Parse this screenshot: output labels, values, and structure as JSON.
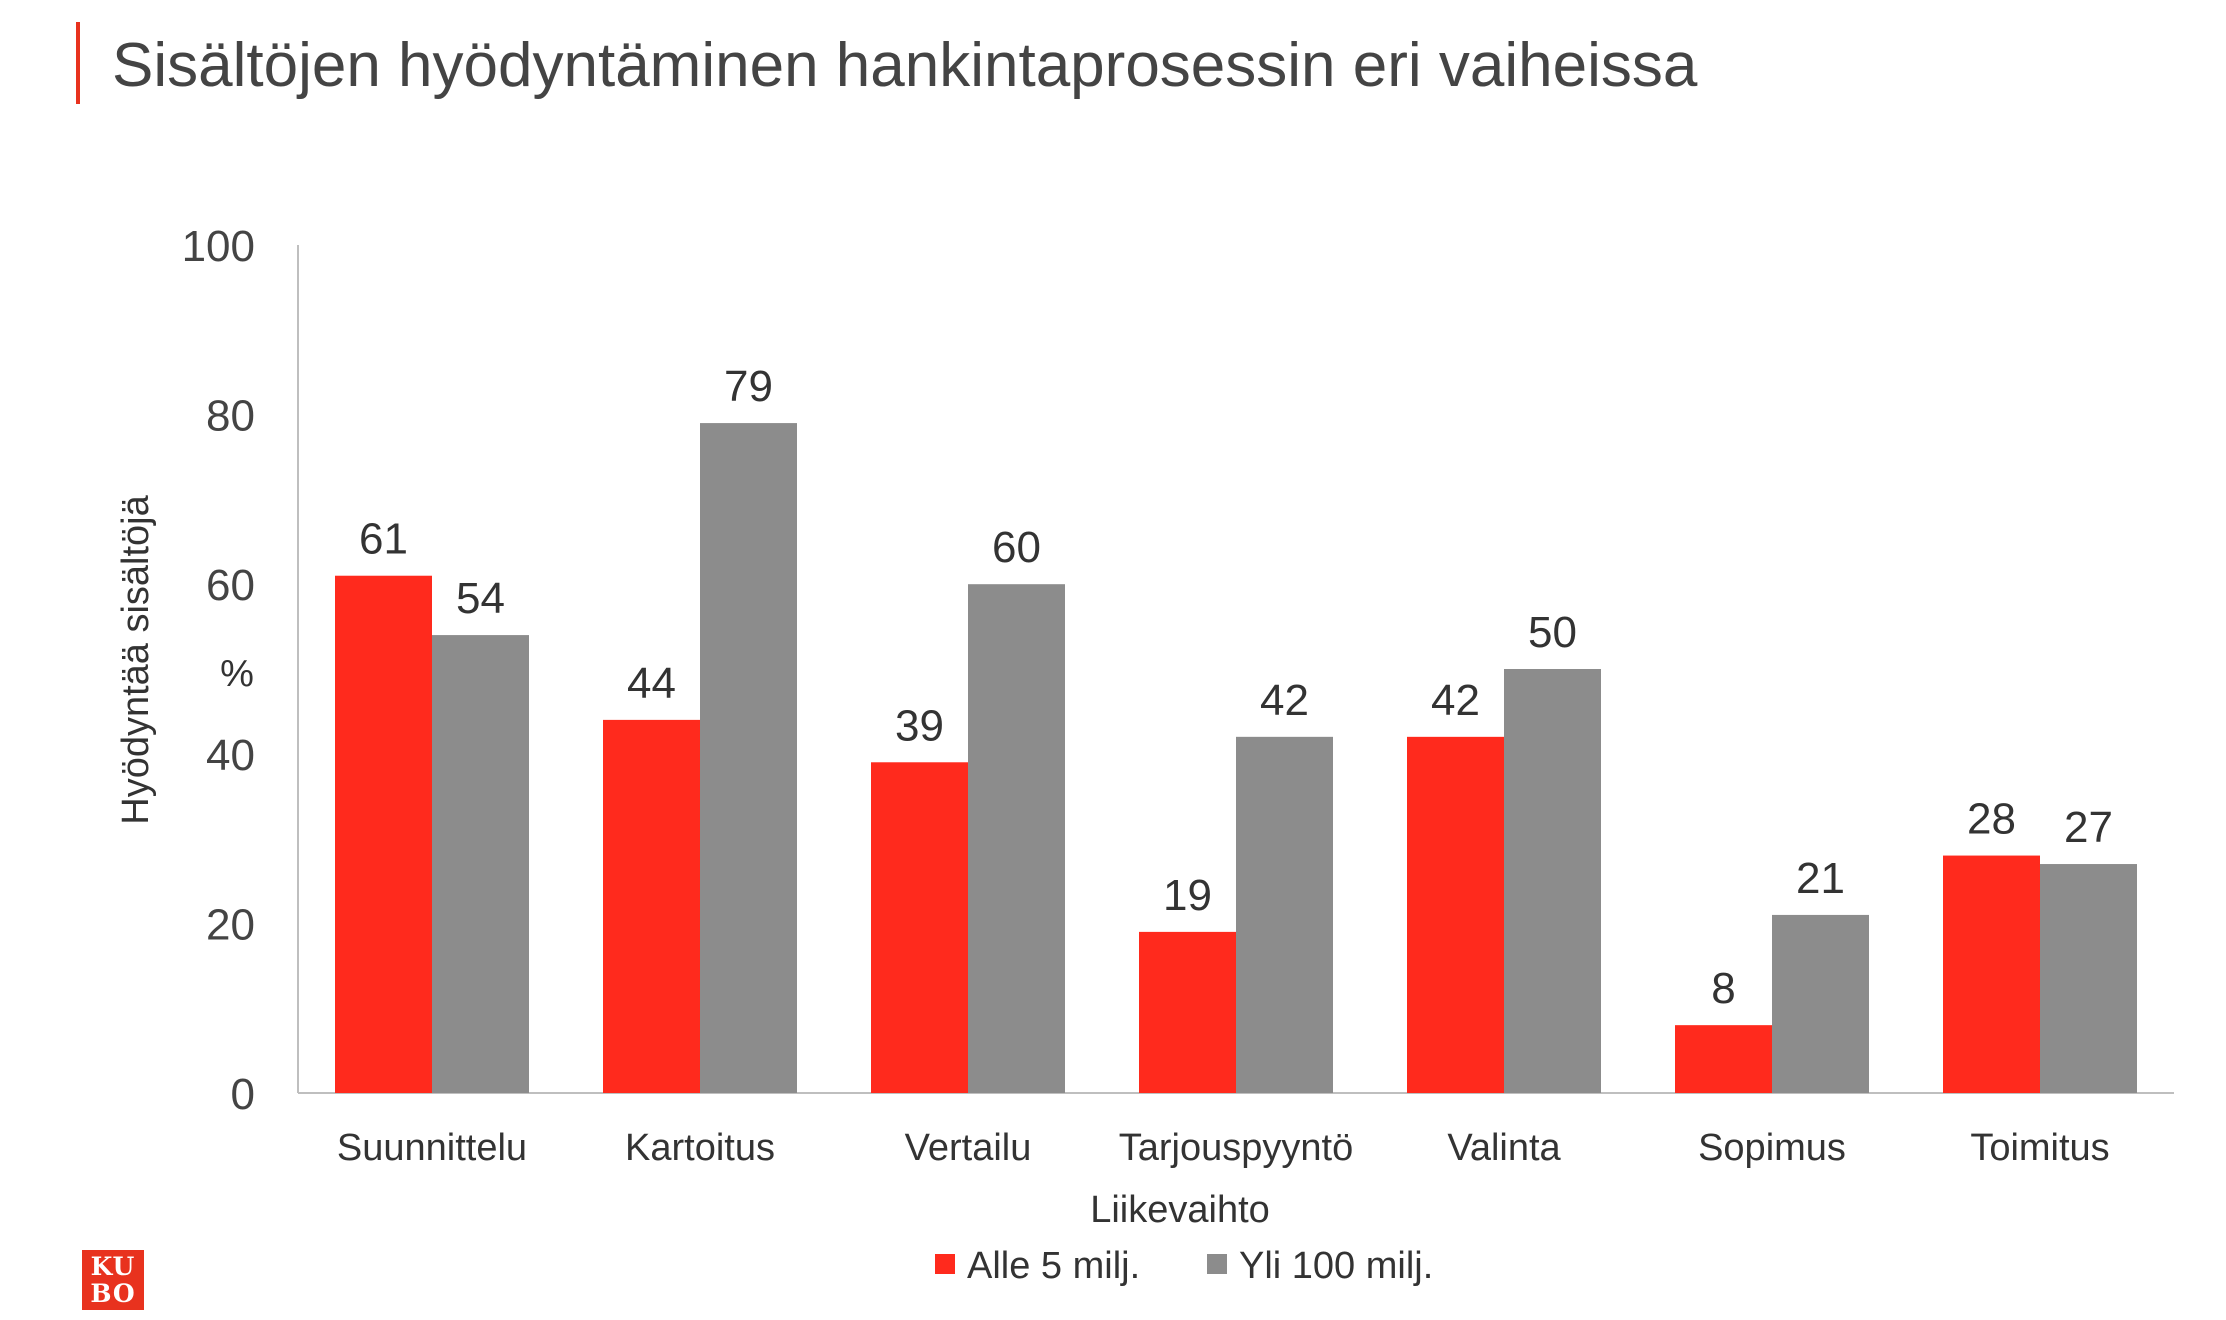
{
  "title": "Sisältöjen hyödyntäminen hankintaprosessin eri vaiheissa",
  "logo": {
    "line1": "KU",
    "line2": "BO"
  },
  "colors": {
    "accent": "#e8321e",
    "series1": "#ff2a1d",
    "series2": "#8c8c8c"
  },
  "chart_data": {
    "type": "bar",
    "categories": [
      "Suunnittelu",
      "Kartoitus",
      "Vertailu",
      "Tarjouspyyntö",
      "Valinta",
      "Sopimus",
      "Toimitus"
    ],
    "series": [
      {
        "name": "Alle 5 milj.",
        "values": [
          61,
          44,
          39,
          19,
          42,
          8,
          28
        ]
      },
      {
        "name": "Yli 100 milj.",
        "values": [
          54,
          79,
          60,
          42,
          50,
          21,
          27
        ]
      }
    ],
    "ylabel_line1": "Hyödyntää sisältöjä",
    "ylabel_line2": "%",
    "xlabel": "Liikevaihto",
    "ylim": [
      0,
      100
    ],
    "yticks": [
      0,
      20,
      40,
      60,
      80,
      100
    ],
    "grid": false,
    "legend": "bottom-center"
  }
}
